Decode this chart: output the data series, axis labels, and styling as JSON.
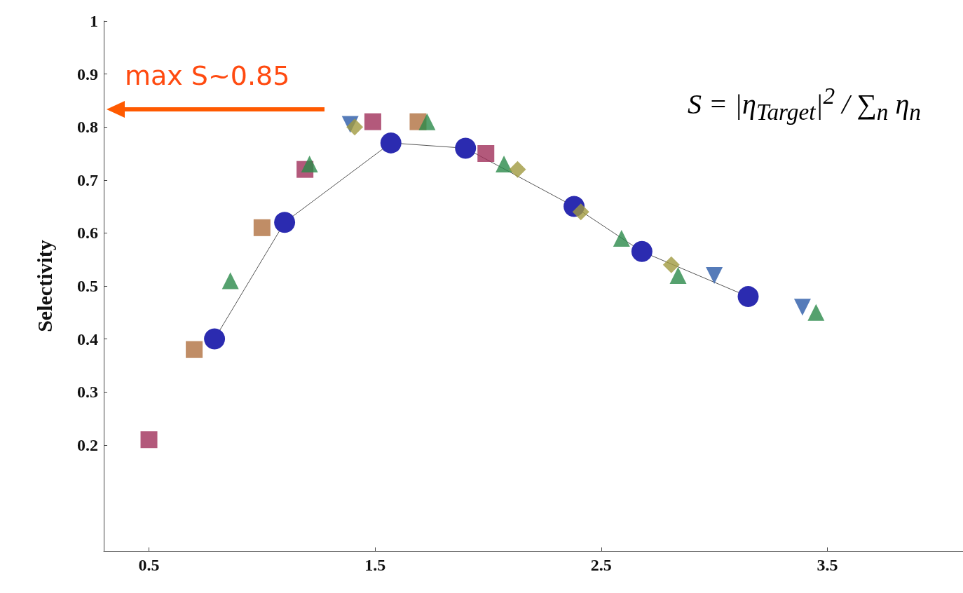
{
  "chart_data": {
    "type": "scatter",
    "ylabel": "Selectivity",
    "xlim": [
      0.3,
      4.1
    ],
    "ylim": [
      0,
      1
    ],
    "xticks": [
      0.5,
      1.5,
      2.5,
      3.5
    ],
    "yticks": [
      0.2,
      0.3,
      0.4,
      0.5,
      0.6,
      0.7,
      0.8,
      0.9,
      1
    ],
    "grid": false,
    "series": [
      {
        "type": "line",
        "marker": "circle",
        "color": "#2b2bb0",
        "x": [
          0.79,
          1.1,
          1.57,
          1.9,
          2.38,
          2.68,
          3.15
        ],
        "values": [
          0.4,
          0.62,
          0.77,
          0.76,
          0.65,
          0.565,
          0.48
        ]
      },
      {
        "marker": "square",
        "color": "#a0305a",
        "x": [
          0.5,
          1.19,
          1.49,
          1.99
        ],
        "values": [
          0.21,
          0.72,
          0.81,
          0.75
        ]
      },
      {
        "marker": "square",
        "color": "#b07040",
        "x": [
          0.7,
          1.0,
          1.69
        ],
        "values": [
          0.38,
          0.61,
          0.81
        ]
      },
      {
        "marker": "triangle",
        "color": "#2a8a4a",
        "x": [
          0.86,
          1.21,
          1.73,
          2.07,
          2.59,
          2.84,
          3.45
        ],
        "values": [
          0.51,
          0.73,
          0.81,
          0.73,
          0.59,
          0.52,
          0.45
        ]
      },
      {
        "marker": "triangle_down",
        "color": "#2a5aa8",
        "x": [
          1.39,
          3.0,
          3.39
        ],
        "values": [
          0.805,
          0.52,
          0.46
        ]
      },
      {
        "marker": "diamond",
        "color": "#a09a40",
        "x": [
          1.41,
          2.13,
          2.41,
          2.81
        ],
        "values": [
          0.8,
          0.72,
          0.64,
          0.54
        ]
      }
    ],
    "annotations": [
      "max S~0.85",
      "S = |η$_{Target}$|$^{2}$ / ∑$_{n}$ η$_{n}$"
    ]
  }
}
